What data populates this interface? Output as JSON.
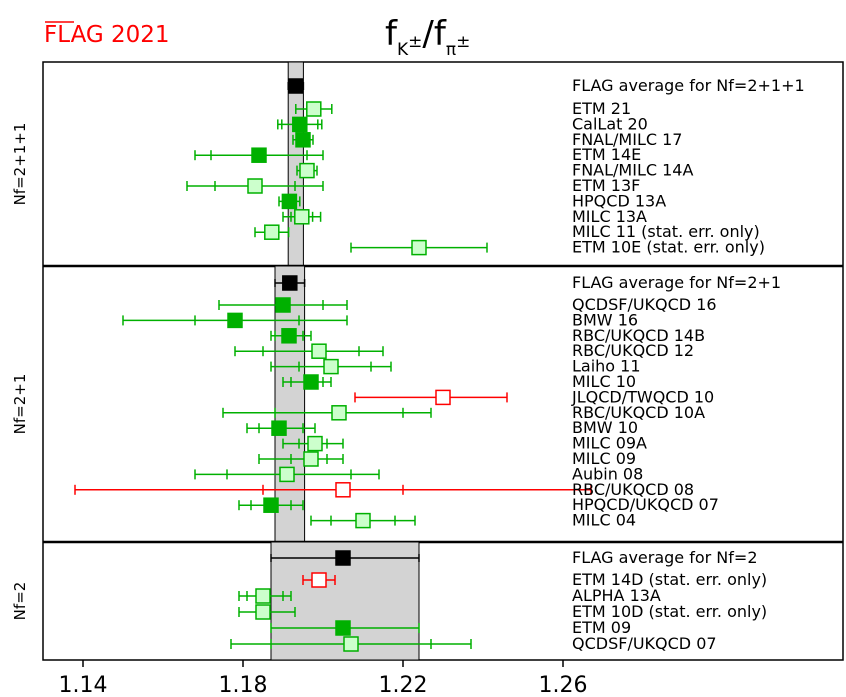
{
  "logo": "FLAG 2021",
  "title": {
    "main": "f",
    "sub1": "K",
    "sup1": "±",
    "slash": "/f",
    "sub2": "π",
    "sup2": "±"
  },
  "colors": {
    "dark_green": "#00b000",
    "light_green_fill": "#ccffcc",
    "red": "#ff0000",
    "black": "#000000",
    "average_band": "#d3d3d3"
  },
  "chart_data": {
    "type": "forest",
    "title": "fK±/fπ±",
    "xlim": [
      1.13,
      1.33
    ],
    "xticks": [
      1.14,
      1.18,
      1.22,
      1.26
    ],
    "xtick_labels": [
      "1.14",
      "1.18",
      "1.22",
      "1.26"
    ],
    "panels": [
      {
        "label": "Nf=2+1+1",
        "average": {
          "label": "FLAG average for Nf=2+1+1",
          "value": 1.1932,
          "band": [
            1.1913,
            1.1951
          ],
          "err_lo": 1.1913,
          "err_hi": 1.1951
        },
        "entries": [
          {
            "label": "ETM 21",
            "value": 1.1977,
            "stat": [
              1.1932,
              1.2022
            ],
            "total": [
              1.1932,
              1.2022
            ],
            "style": "light"
          },
          {
            "label": "CalLat 20",
            "value": 1.1942,
            "stat": [
              1.1897,
              1.1987
            ],
            "total": [
              1.1887,
              1.1997
            ],
            "style": "dark"
          },
          {
            "label": "FNAL/MILC 17",
            "value": 1.195,
            "stat": [
              1.1935,
              1.1965
            ],
            "total": [
              1.1925,
              1.1975
            ],
            "style": "dark"
          },
          {
            "label": "ETM 14E",
            "value": 1.184,
            "stat": [
              1.172,
              1.196
            ],
            "total": [
              1.168,
              1.2
            ],
            "style": "dark"
          },
          {
            "label": "FNAL/MILC 14A",
            "value": 1.196,
            "stat": [
              1.1945,
              1.1975
            ],
            "total": [
              1.1935,
              1.1985
            ],
            "style": "light"
          },
          {
            "label": "ETM 13F",
            "value": 1.183,
            "stat": [
              1.173,
              1.193
            ],
            "total": [
              1.166,
              1.2
            ],
            "style": "light"
          },
          {
            "label": "HPQCD 13A",
            "value": 1.1916,
            "stat": [
              1.19,
              1.1932
            ],
            "total": [
              1.189,
              1.1942
            ],
            "style": "dark"
          },
          {
            "label": "MILC 13A",
            "value": 1.1947,
            "stat": [
              1.192,
              1.1974
            ],
            "total": [
              1.19,
              1.1994
            ],
            "style": "light"
          },
          {
            "label": "MILC 11 (stat. err. only)",
            "value": 1.1872,
            "stat": [
              1.183,
              1.1914
            ],
            "total": [
              1.183,
              1.1914
            ],
            "style": "light"
          },
          {
            "label": "ETM 10E (stat. err. only)",
            "value": 1.224,
            "stat": [
              1.207,
              1.241
            ],
            "total": [
              1.207,
              1.241
            ],
            "style": "light"
          }
        ]
      },
      {
        "label": "Nf=2+1",
        "average": {
          "label": "FLAG average for Nf=2+1",
          "value": 1.1917,
          "band": [
            1.188,
            1.1954
          ],
          "err_lo": 1.188,
          "err_hi": 1.1954
        },
        "entries": [
          {
            "label": "QCDSF/UKQCD 16",
            "value": 1.19,
            "stat": [
              1.174,
              1.2
            ],
            "total": [
              1.174,
              1.206
            ],
            "style": "dark"
          },
          {
            "label": "BMW 16",
            "value": 1.178,
            "stat": [
              1.168,
              1.194
            ],
            "total": [
              1.15,
              1.206
            ],
            "style": "dark"
          },
          {
            "label": "RBC/UKQCD 14B",
            "value": 1.1915,
            "stat": [
              1.188,
              1.195
            ],
            "total": [
              1.187,
              1.197
            ],
            "style": "dark"
          },
          {
            "label": "RBC/UKQCD 12",
            "value": 1.199,
            "stat": [
              1.185,
              1.209
            ],
            "total": [
              1.178,
              1.215
            ],
            "style": "light"
          },
          {
            "label": "Laiho 11",
            "value": 1.202,
            "stat": [
              1.194,
              1.212
            ],
            "total": [
              1.187,
              1.217
            ],
            "style": "light"
          },
          {
            "label": "MILC 10",
            "value": 1.197,
            "stat": [
              1.192,
              1.2
            ],
            "total": [
              1.19,
              1.202
            ],
            "style": "dark"
          },
          {
            "label": "JLQCD/TWQCD 10",
            "value": 1.23,
            "stat": [
              1.208,
              1.246
            ],
            "total": [
              1.208,
              1.246
            ],
            "style": "red"
          },
          {
            "label": "RBC/UKQCD 10A",
            "value": 1.204,
            "stat": [
              1.188,
              1.22
            ],
            "total": [
              1.175,
              1.227
            ],
            "style": "light"
          },
          {
            "label": "BMW 10",
            "value": 1.189,
            "stat": [
              1.184,
              1.195
            ],
            "total": [
              1.181,
              1.198
            ],
            "style": "dark"
          },
          {
            "label": "MILC 09A",
            "value": 1.198,
            "stat": [
              1.194,
              1.201
            ],
            "total": [
              1.19,
              1.205
            ],
            "style": "light"
          },
          {
            "label": "MILC 09",
            "value": 1.197,
            "stat": [
              1.192,
              1.201
            ],
            "total": [
              1.184,
              1.205
            ],
            "style": "light"
          },
          {
            "label": "Aubin 08",
            "value": 1.191,
            "stat": [
              1.176,
              1.207
            ],
            "total": [
              1.168,
              1.214
            ],
            "style": "light"
          },
          {
            "label": "RBC/UKQCD 08",
            "value": 1.205,
            "stat": [
              1.185,
              1.22
            ],
            "total": [
              1.138,
              1.267
            ],
            "style": "red"
          },
          {
            "label": "HPQCD/UKQCD 07",
            "value": 1.187,
            "stat": [
              1.182,
              1.192
            ],
            "total": [
              1.179,
              1.195
            ],
            "style": "dark"
          },
          {
            "label": "MILC 04",
            "value": 1.21,
            "stat": [
              1.202,
              1.218
            ],
            "total": [
              1.197,
              1.223
            ],
            "style": "light"
          }
        ]
      },
      {
        "label": "Nf=2",
        "average": {
          "label": "FLAG average for Nf=2",
          "value": 1.205,
          "band": [
            1.187,
            1.224
          ],
          "err_lo": 1.187,
          "err_hi": 1.224
        },
        "entries": [
          {
            "label": "ETM 14D (stat. err. only)",
            "value": 1.199,
            "stat": [
              1.195,
              1.203
            ],
            "total": [
              1.195,
              1.203
            ],
            "style": "red"
          },
          {
            "label": "ALPHA 13A",
            "value": 1.185,
            "stat": [
              1.181,
              1.19
            ],
            "total": [
              1.179,
              1.192
            ],
            "style": "light"
          },
          {
            "label": "ETM 10D (stat. err. only)",
            "value": 1.185,
            "stat": [
              1.179,
              1.193
            ],
            "total": [
              1.179,
              1.193
            ],
            "style": "light"
          },
          {
            "label": "ETM 09",
            "value": 1.205,
            "stat": [
              1.187,
              1.224
            ],
            "total": [
              1.187,
              1.224
            ],
            "style": "dark"
          },
          {
            "label": "QCDSF/UKQCD 07",
            "value": 1.207,
            "stat": [
              1.187,
              1.227
            ],
            "total": [
              1.177,
              1.237
            ],
            "style": "light"
          }
        ]
      }
    ]
  }
}
